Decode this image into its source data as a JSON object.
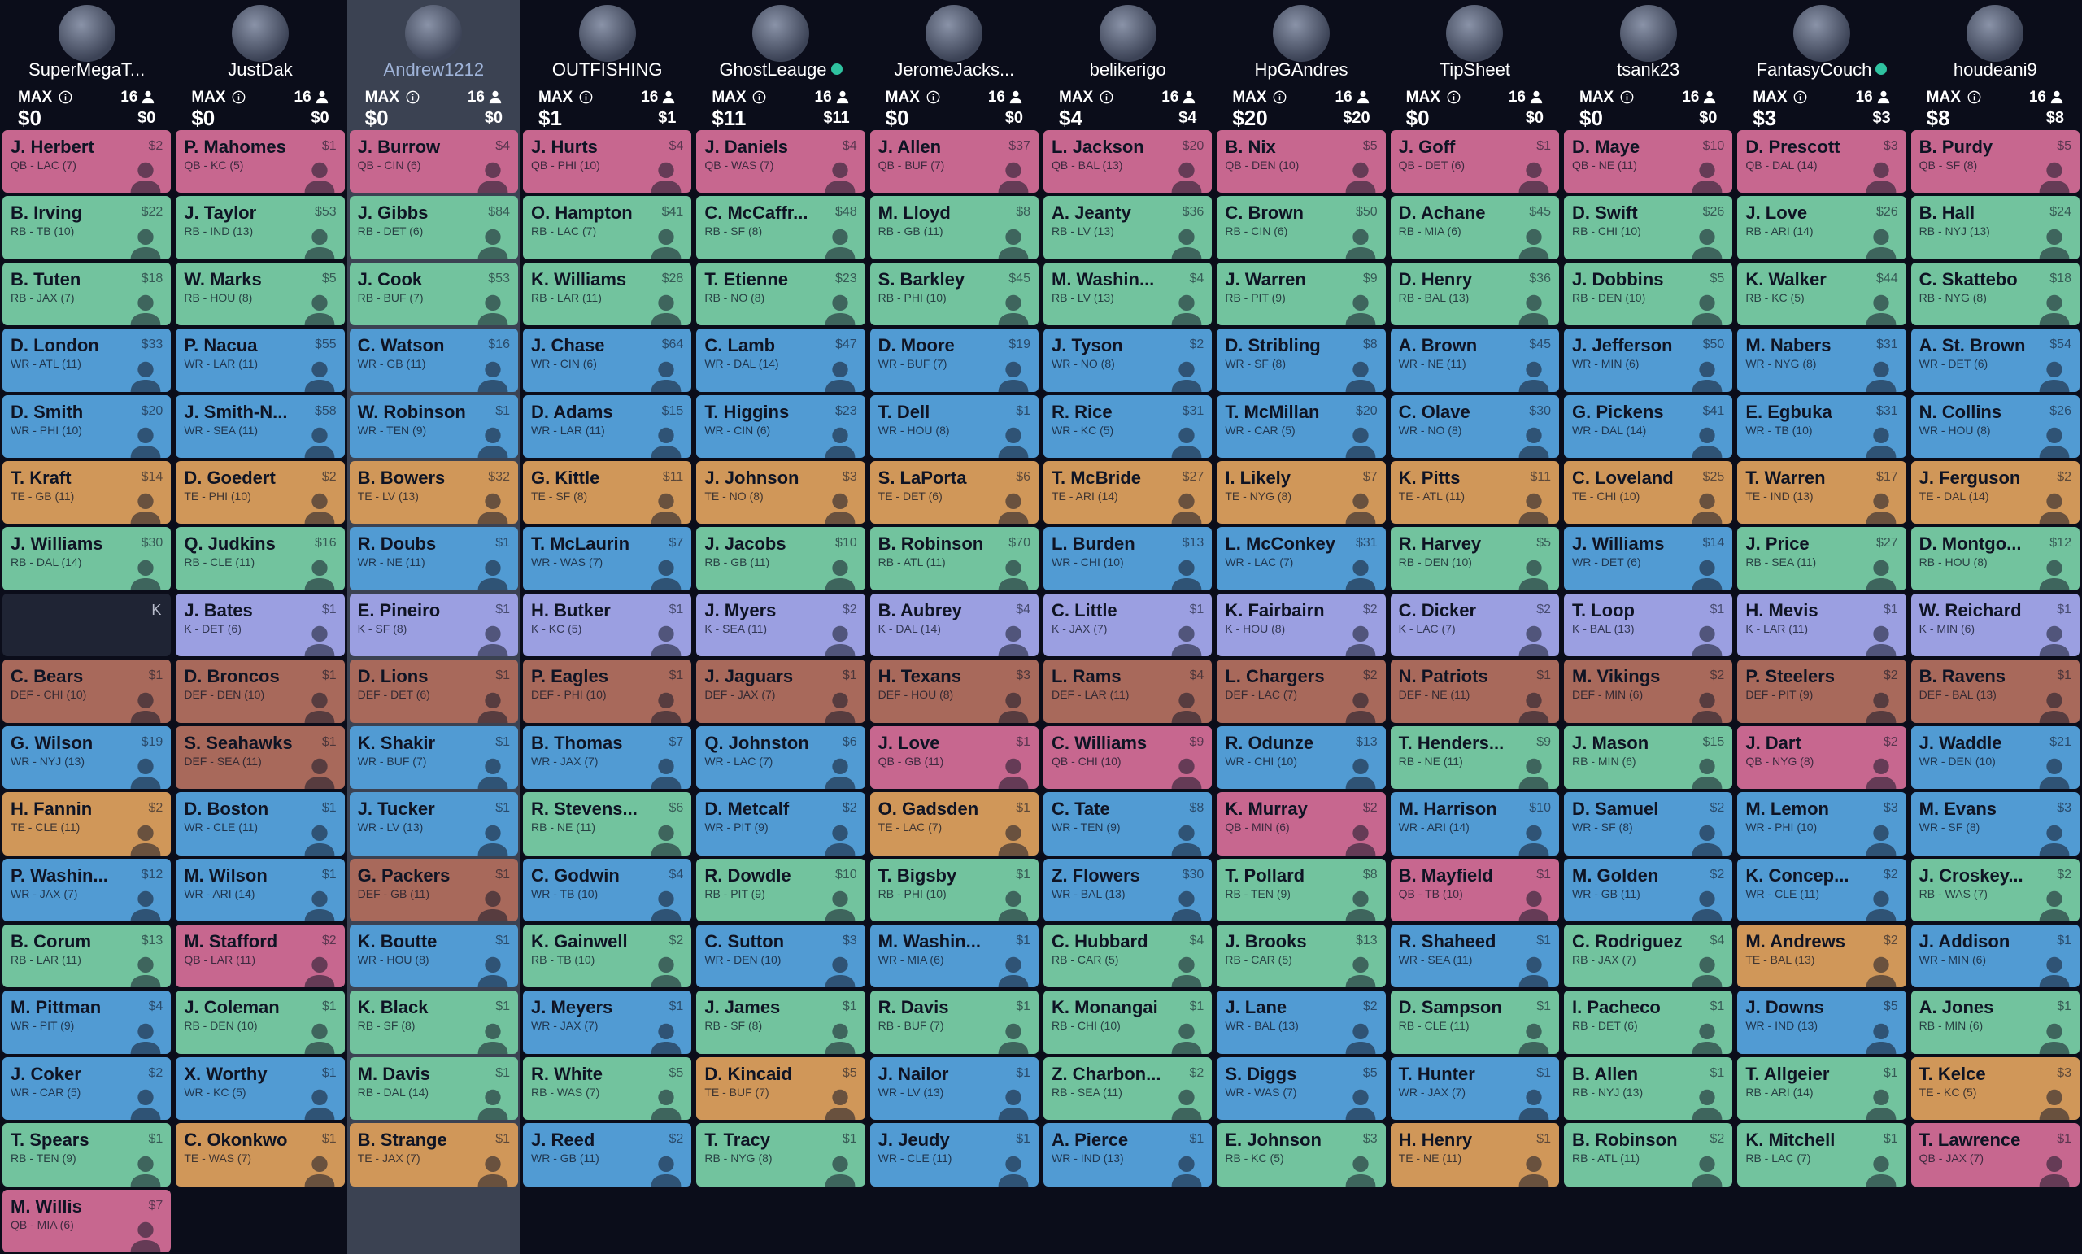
{
  "position_colors": {
    "QB": "#c7678f",
    "RB": "#72c39e",
    "WR": "#519bd3",
    "TE": "#d09759",
    "K": "#9b9fe1",
    "DEF": "#a8695b"
  },
  "empty_color": "#1f2434",
  "teams": [
    {
      "name": "SuperMegaT...",
      "max_label": "MAX",
      "max": "$0",
      "roster": "16",
      "budget": "$0",
      "online": false,
      "selected": false,
      "picks": [
        [
          "J. Herbert",
          "QB - LAC (7)",
          "$2"
        ],
        [
          "B. Irving",
          "RB - TB (10)",
          "$22"
        ],
        [
          "B. Tuten",
          "RB - JAX (7)",
          "$18"
        ],
        [
          "D. London",
          "WR - ATL (11)",
          "$33"
        ],
        [
          "D. Smith",
          "WR - PHI (10)",
          "$20"
        ],
        [
          "T. Kraft",
          "TE - GB (11)",
          "$14"
        ],
        [
          "J. Williams",
          "RB - DAL (14)",
          "$30"
        ],
        [
          "K"
        ],
        [
          "C. Bears",
          "DEF - CHI (10)",
          "$1"
        ],
        [
          "G. Wilson",
          "WR - NYJ (13)",
          "$19"
        ],
        [
          "H. Fannin",
          "TE - CLE (11)",
          "$2"
        ],
        [
          "P. Washin...",
          "WR - JAX (7)",
          "$12"
        ],
        [
          "B. Corum",
          "RB - LAR (11)",
          "$13"
        ],
        [
          "M. Pittman",
          "WR - PIT (9)",
          "$4"
        ],
        [
          "J. Coker",
          "WR - CAR (5)",
          "$2"
        ],
        [
          "T. Spears",
          "RB - TEN (9)",
          "$1"
        ],
        [
          "M. Willis",
          "QB - MIA (6)",
          "$7"
        ]
      ]
    },
    {
      "name": "JustDak",
      "max_label": "MAX",
      "max": "$0",
      "roster": "16",
      "budget": "$0",
      "online": false,
      "selected": false,
      "picks": [
        [
          "P. Mahomes",
          "QB - KC (5)",
          "$1"
        ],
        [
          "J. Taylor",
          "RB - IND (13)",
          "$53"
        ],
        [
          "W. Marks",
          "RB - HOU (8)",
          "$5"
        ],
        [
          "P. Nacua",
          "WR - LAR (11)",
          "$55"
        ],
        [
          "J. Smith-N...",
          "WR - SEA (11)",
          "$58"
        ],
        [
          "D. Goedert",
          "TE - PHI (10)",
          "$2"
        ],
        [
          "Q. Judkins",
          "RB - CLE (11)",
          "$16"
        ],
        [
          "J. Bates",
          "K - DET (6)",
          "$1"
        ],
        [
          "D. Broncos",
          "DEF - DEN (10)",
          "$1"
        ],
        [
          "S. Seahawks",
          "DEF - SEA (11)",
          "$1"
        ],
        [
          "D. Boston",
          "WR - CLE (11)",
          "$1"
        ],
        [
          "M. Wilson",
          "WR - ARI (14)",
          "$1"
        ],
        [
          "M. Stafford",
          "QB - LAR (11)",
          "$2"
        ],
        [
          "J. Coleman",
          "RB - DEN (10)",
          "$1"
        ],
        [
          "X. Worthy",
          "WR - KC (5)",
          "$1"
        ],
        [
          "C. Okonkwo",
          "TE - WAS (7)",
          "$1"
        ]
      ]
    },
    {
      "name": "Andrew1212",
      "max_label": "MAX",
      "max": "$0",
      "roster": "16",
      "budget": "$0",
      "online": false,
      "selected": true,
      "picks": [
        [
          "J. Burrow",
          "QB - CIN (6)",
          "$4"
        ],
        [
          "J. Gibbs",
          "RB - DET (6)",
          "$84"
        ],
        [
          "J. Cook",
          "RB - BUF (7)",
          "$53"
        ],
        [
          "C. Watson",
          "WR - GB (11)",
          "$16"
        ],
        [
          "W. Robinson",
          "WR - TEN (9)",
          "$1"
        ],
        [
          "B. Bowers",
          "TE - LV (13)",
          "$32"
        ],
        [
          "R. Doubs",
          "WR - NE (11)",
          "$1"
        ],
        [
          "E. Pineiro",
          "K - SF (8)",
          "$1"
        ],
        [
          "D. Lions",
          "DEF - DET (6)",
          "$1"
        ],
        [
          "K. Shakir",
          "WR - BUF (7)",
          "$1"
        ],
        [
          "J. Tucker",
          "WR - LV (13)",
          "$1"
        ],
        [
          "G. Packers",
          "DEF - GB (11)",
          "$1"
        ],
        [
          "K. Boutte",
          "WR - HOU (8)",
          "$1"
        ],
        [
          "K. Black",
          "RB - SF (8)",
          "$1"
        ],
        [
          "M. Davis",
          "RB - DAL (14)",
          "$1"
        ],
        [
          "B. Strange",
          "TE - JAX (7)",
          "$1"
        ]
      ]
    },
    {
      "name": "OUTFISHING",
      "max_label": "MAX",
      "max": "$1",
      "roster": "16",
      "budget": "$1",
      "online": false,
      "selected": false,
      "picks": [
        [
          "J. Hurts",
          "QB - PHI (10)",
          "$4"
        ],
        [
          "O. Hampton",
          "RB - LAC (7)",
          "$41"
        ],
        [
          "K. Williams",
          "RB - LAR (11)",
          "$28"
        ],
        [
          "J. Chase",
          "WR - CIN (6)",
          "$64"
        ],
        [
          "D. Adams",
          "WR - LAR (11)",
          "$15"
        ],
        [
          "G. Kittle",
          "TE - SF (8)",
          "$11"
        ],
        [
          "T. McLaurin",
          "WR - WAS (7)",
          "$7"
        ],
        [
          "H. Butker",
          "K - KC (5)",
          "$1"
        ],
        [
          "P. Eagles",
          "DEF - PHI (10)",
          "$1"
        ],
        [
          "B. Thomas",
          "WR - JAX (7)",
          "$7"
        ],
        [
          "R. Stevens...",
          "RB - NE (11)",
          "$6"
        ],
        [
          "C. Godwin",
          "WR - TB (10)",
          "$4"
        ],
        [
          "K. Gainwell",
          "RB - TB (10)",
          "$2"
        ],
        [
          "J. Meyers",
          "WR - JAX (7)",
          "$1"
        ],
        [
          "R. White",
          "RB - WAS (7)",
          "$5"
        ],
        [
          "J. Reed",
          "WR - GB (11)",
          "$2"
        ]
      ]
    },
    {
      "name": "GhostLeauge",
      "max_label": "MAX",
      "max": "$11",
      "roster": "16",
      "budget": "$11",
      "online": true,
      "selected": false,
      "picks": [
        [
          "J. Daniels",
          "QB - WAS (7)",
          "$4"
        ],
        [
          "C. McCaffr...",
          "RB - SF (8)",
          "$48"
        ],
        [
          "T. Etienne",
          "RB - NO (8)",
          "$23"
        ],
        [
          "C. Lamb",
          "WR - DAL (14)",
          "$47"
        ],
        [
          "T. Higgins",
          "WR - CIN (6)",
          "$23"
        ],
        [
          "J. Johnson",
          "TE - NO (8)",
          "$3"
        ],
        [
          "J. Jacobs",
          "RB - GB (11)",
          "$10"
        ],
        [
          "J. Myers",
          "K - SEA (11)",
          "$2"
        ],
        [
          "J. Jaguars",
          "DEF - JAX (7)",
          "$1"
        ],
        [
          "Q. Johnston",
          "WR - LAC (7)",
          "$6"
        ],
        [
          "D. Metcalf",
          "WR - PIT (9)",
          "$2"
        ],
        [
          "R. Dowdle",
          "RB - PIT (9)",
          "$10"
        ],
        [
          "C. Sutton",
          "WR - DEN (10)",
          "$3"
        ],
        [
          "J. James",
          "RB - SF (8)",
          "$1"
        ],
        [
          "D. Kincaid",
          "TE - BUF (7)",
          "$5"
        ],
        [
          "T. Tracy",
          "RB - NYG (8)",
          "$1"
        ]
      ]
    },
    {
      "name": "JeromeJacks...",
      "max_label": "MAX",
      "max": "$0",
      "roster": "16",
      "budget": "$0",
      "online": false,
      "selected": false,
      "picks": [
        [
          "J. Allen",
          "QB - BUF (7)",
          "$37"
        ],
        [
          "M. Lloyd",
          "RB - GB (11)",
          "$8"
        ],
        [
          "S. Barkley",
          "RB - PHI (10)",
          "$45"
        ],
        [
          "D. Moore",
          "WR - BUF (7)",
          "$19"
        ],
        [
          "T. Dell",
          "WR - HOU (8)",
          "$1"
        ],
        [
          "S. LaPorta",
          "TE - DET (6)",
          "$6"
        ],
        [
          "B. Robinson",
          "RB - ATL (11)",
          "$70"
        ],
        [
          "B. Aubrey",
          "K - DAL (14)",
          "$4"
        ],
        [
          "H. Texans",
          "DEF - HOU (8)",
          "$3"
        ],
        [
          "J. Love",
          "QB - GB (11)",
          "$1"
        ],
        [
          "O. Gadsden",
          "TE - LAC (7)",
          "$1"
        ],
        [
          "T. Bigsby",
          "RB - PHI (10)",
          "$1"
        ],
        [
          "M. Washin...",
          "WR - MIA (6)",
          "$1"
        ],
        [
          "R. Davis",
          "RB - BUF (7)",
          "$1"
        ],
        [
          "J. Nailor",
          "WR - LV (13)",
          "$1"
        ],
        [
          "J. Jeudy",
          "WR - CLE (11)",
          "$1"
        ]
      ]
    },
    {
      "name": "belikerigo",
      "max_label": "MAX",
      "max": "$4",
      "roster": "16",
      "budget": "$4",
      "online": false,
      "selected": false,
      "picks": [
        [
          "L. Jackson",
          "QB - BAL (13)",
          "$20"
        ],
        [
          "A. Jeanty",
          "RB - LV (13)",
          "$36"
        ],
        [
          "M. Washin...",
          "RB - LV (13)",
          "$4"
        ],
        [
          "J. Tyson",
          "WR - NO (8)",
          "$2"
        ],
        [
          "R. Rice",
          "WR - KC (5)",
          "$31"
        ],
        [
          "T. McBride",
          "TE - ARI (14)",
          "$27"
        ],
        [
          "L. Burden",
          "WR - CHI (10)",
          "$13"
        ],
        [
          "C. Little",
          "K - JAX (7)",
          "$1"
        ],
        [
          "L. Rams",
          "DEF - LAR (11)",
          "$4"
        ],
        [
          "C. Williams",
          "QB - CHI (10)",
          "$9"
        ],
        [
          "C. Tate",
          "WR - TEN (9)",
          "$8"
        ],
        [
          "Z. Flowers",
          "WR - BAL (13)",
          "$30"
        ],
        [
          "C. Hubbard",
          "RB - CAR (5)",
          "$4"
        ],
        [
          "K. Monangai",
          "RB - CHI (10)",
          "$1"
        ],
        [
          "Z. Charbon...",
          "RB - SEA (11)",
          "$2"
        ],
        [
          "A. Pierce",
          "WR - IND (13)",
          "$1"
        ]
      ]
    },
    {
      "name": "HpGAndres",
      "max_label": "MAX",
      "max": "$20",
      "roster": "16",
      "budget": "$20",
      "online": false,
      "selected": false,
      "picks": [
        [
          "B. Nix",
          "QB - DEN (10)",
          "$5"
        ],
        [
          "C. Brown",
          "RB - CIN (6)",
          "$50"
        ],
        [
          "J. Warren",
          "RB - PIT (9)",
          "$9"
        ],
        [
          "D. Stribling",
          "WR - SF (8)",
          "$8"
        ],
        [
          "T. McMillan",
          "WR - CAR (5)",
          "$20"
        ],
        [
          "I. Likely",
          "TE - NYG (8)",
          "$7"
        ],
        [
          "L. McConkey",
          "WR - LAC (7)",
          "$31"
        ],
        [
          "K. Fairbairn",
          "K - HOU (8)",
          "$2"
        ],
        [
          "L. Chargers",
          "DEF - LAC (7)",
          "$2"
        ],
        [
          "R. Odunze",
          "WR - CHI (10)",
          "$13"
        ],
        [
          "K. Murray",
          "QB - MIN (6)",
          "$2"
        ],
        [
          "T. Pollard",
          "RB - TEN (9)",
          "$8"
        ],
        [
          "J. Brooks",
          "RB - CAR (5)",
          "$13"
        ],
        [
          "J. Lane",
          "WR - BAL (13)",
          "$2"
        ],
        [
          "S. Diggs",
          "WR - WAS (7)",
          "$5"
        ],
        [
          "E. Johnson",
          "RB - KC (5)",
          "$3"
        ]
      ]
    },
    {
      "name": "TipSheet",
      "max_label": "MAX",
      "max": "$0",
      "roster": "16",
      "budget": "$0",
      "online": false,
      "selected": false,
      "picks": [
        [
          "J. Goff",
          "QB - DET (6)",
          "$1"
        ],
        [
          "D. Achane",
          "RB - MIA (6)",
          "$45"
        ],
        [
          "D. Henry",
          "RB - BAL (13)",
          "$36"
        ],
        [
          "A. Brown",
          "WR - NE (11)",
          "$45"
        ],
        [
          "C. Olave",
          "WR - NO (8)",
          "$30"
        ],
        [
          "K. Pitts",
          "TE - ATL (11)",
          "$11"
        ],
        [
          "R. Harvey",
          "RB - DEN (10)",
          "$5"
        ],
        [
          "C. Dicker",
          "K - LAC (7)",
          "$2"
        ],
        [
          "N. Patriots",
          "DEF - NE (11)",
          "$1"
        ],
        [
          "T. Henders...",
          "RB - NE (11)",
          "$9"
        ],
        [
          "M. Harrison",
          "WR - ARI (14)",
          "$10"
        ],
        [
          "B. Mayfield",
          "QB - TB (10)",
          "$1"
        ],
        [
          "R. Shaheed",
          "WR - SEA (11)",
          "$1"
        ],
        [
          "D. Sampson",
          "RB - CLE (11)",
          "$1"
        ],
        [
          "T. Hunter",
          "WR - JAX (7)",
          "$1"
        ],
        [
          "H. Henry",
          "TE - NE (11)",
          "$1"
        ]
      ]
    },
    {
      "name": "tsank23",
      "max_label": "MAX",
      "max": "$0",
      "roster": "16",
      "budget": "$0",
      "online": false,
      "selected": false,
      "picks": [
        [
          "D. Maye",
          "QB - NE (11)",
          "$10"
        ],
        [
          "D. Swift",
          "RB - CHI (10)",
          "$26"
        ],
        [
          "J. Dobbins",
          "RB - DEN (10)",
          "$5"
        ],
        [
          "J. Jefferson",
          "WR - MIN (6)",
          "$50"
        ],
        [
          "G. Pickens",
          "WR - DAL (14)",
          "$41"
        ],
        [
          "C. Loveland",
          "TE - CHI (10)",
          "$25"
        ],
        [
          "J. Williams",
          "WR - DET (6)",
          "$14"
        ],
        [
          "T. Loop",
          "K - BAL (13)",
          "$1"
        ],
        [
          "M. Vikings",
          "DEF - MIN (6)",
          "$2"
        ],
        [
          "J. Mason",
          "RB - MIN (6)",
          "$15"
        ],
        [
          "D. Samuel",
          "WR - SF (8)",
          "$2"
        ],
        [
          "M. Golden",
          "WR - GB (11)",
          "$2"
        ],
        [
          "C. Rodriguez",
          "RB - JAX (7)",
          "$4"
        ],
        [
          "I. Pacheco",
          "RB - DET (6)",
          "$1"
        ],
        [
          "B. Allen",
          "RB - NYJ (13)",
          "$1"
        ],
        [
          "B. Robinson",
          "RB - ATL (11)",
          "$2"
        ]
      ]
    },
    {
      "name": "FantasyCouch",
      "max_label": "MAX",
      "max": "$3",
      "roster": "16",
      "budget": "$3",
      "online": true,
      "selected": false,
      "picks": [
        [
          "D. Prescott",
          "QB - DAL (14)",
          "$3"
        ],
        [
          "J. Love",
          "RB - ARI (14)",
          "$26"
        ],
        [
          "K. Walker",
          "RB - KC (5)",
          "$44"
        ],
        [
          "M. Nabers",
          "WR - NYG (8)",
          "$31"
        ],
        [
          "E. Egbuka",
          "WR - TB (10)",
          "$31"
        ],
        [
          "T. Warren",
          "TE - IND (13)",
          "$17"
        ],
        [
          "J. Price",
          "RB - SEA (11)",
          "$27"
        ],
        [
          "H. Mevis",
          "K - LAR (11)",
          "$1"
        ],
        [
          "P. Steelers",
          "DEF - PIT (9)",
          "$2"
        ],
        [
          "J. Dart",
          "QB - NYG (8)",
          "$2"
        ],
        [
          "M. Lemon",
          "WR - PHI (10)",
          "$3"
        ],
        [
          "K. Concep...",
          "WR - CLE (11)",
          "$2"
        ],
        [
          "M. Andrews",
          "TE - BAL (13)",
          "$2"
        ],
        [
          "J. Downs",
          "WR - IND (13)",
          "$5"
        ],
        [
          "T. Allgeier",
          "RB - ARI (14)",
          "$1"
        ],
        [
          "K. Mitchell",
          "RB - LAC (7)",
          "$1"
        ]
      ]
    },
    {
      "name": "houdeani9",
      "max_label": "MAX",
      "max": "$8",
      "roster": "16",
      "budget": "$8",
      "online": false,
      "selected": false,
      "picks": [
        [
          "B. Purdy",
          "QB - SF (8)",
          "$5"
        ],
        [
          "B. Hall",
          "RB - NYJ (13)",
          "$24"
        ],
        [
          "C. Skattebo",
          "RB - NYG (8)",
          "$18"
        ],
        [
          "A. St. Brown",
          "WR - DET (6)",
          "$54"
        ],
        [
          "N. Collins",
          "WR - HOU (8)",
          "$26"
        ],
        [
          "J. Ferguson",
          "TE - DAL (14)",
          "$2"
        ],
        [
          "D. Montgo...",
          "RB - HOU (8)",
          "$12"
        ],
        [
          "W. Reichard",
          "K - MIN (6)",
          "$1"
        ],
        [
          "B. Ravens",
          "DEF - BAL (13)",
          "$1"
        ],
        [
          "J. Waddle",
          "WR - DEN (10)",
          "$21"
        ],
        [
          "M. Evans",
          "WR - SF (8)",
          "$3"
        ],
        [
          "J. Croskey...",
          "RB - WAS (7)",
          "$2"
        ],
        [
          "J. Addison",
          "WR - MIN (6)",
          "$1"
        ],
        [
          "A. Jones",
          "RB - MIN (6)",
          "$1"
        ],
        [
          "T. Kelce",
          "TE - KC (5)",
          "$3"
        ],
        [
          "T. Lawrence",
          "QB - JAX (7)",
          "$1"
        ]
      ]
    }
  ]
}
